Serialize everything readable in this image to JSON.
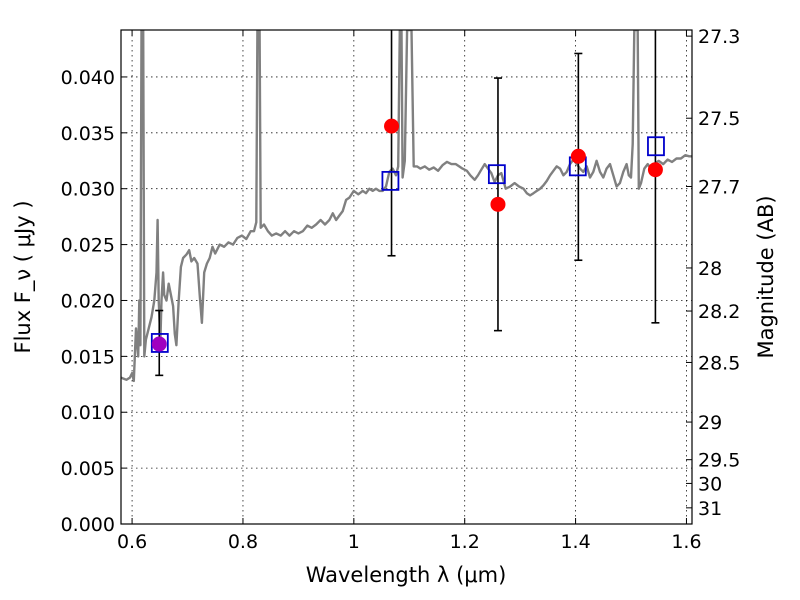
{
  "chart_data": {
    "type": "scatter",
    "xlabel": "Wavelength  λ (μm)",
    "ylabel": "Flux  F_ν  ( μJy )",
    "y2label": "Magnitude (AB)",
    "xlim": [
      0.58,
      1.61
    ],
    "ylim": [
      0.0,
      0.0442
    ],
    "grid": true,
    "x_ticks": [
      {
        "value": 0.6,
        "label": "0.6"
      },
      {
        "value": 0.8,
        "label": "0.8"
      },
      {
        "value": 1.0,
        "label": "1"
      },
      {
        "value": 1.2,
        "label": "1.2"
      },
      {
        "value": 1.4,
        "label": "1.4"
      },
      {
        "value": 1.6,
        "label": "1.6"
      }
    ],
    "y_ticks": [
      {
        "value": 0.0,
        "label": "0.000"
      },
      {
        "value": 0.005,
        "label": "0.005"
      },
      {
        "value": 0.01,
        "label": "0.010"
      },
      {
        "value": 0.015,
        "label": "0.015"
      },
      {
        "value": 0.02,
        "label": "0.020"
      },
      {
        "value": 0.025,
        "label": "0.025"
      },
      {
        "value": 0.03,
        "label": "0.030"
      },
      {
        "value": 0.035,
        "label": "0.035"
      },
      {
        "value": 0.04,
        "label": "0.040"
      }
    ],
    "y2_ticks": [
      {
        "mag": 27.3,
        "label": "27.3"
      },
      {
        "mag": 27.5,
        "label": "27.5"
      },
      {
        "mag": 27.7,
        "label": "27.7"
      },
      {
        "mag": 28.0,
        "label": "28"
      },
      {
        "mag": 28.2,
        "label": "28.2"
      },
      {
        "mag": 28.5,
        "label": "28.5"
      },
      {
        "mag": 29.0,
        "label": "29"
      },
      {
        "mag": 29.5,
        "label": "29.5"
      },
      {
        "mag": 30.0,
        "label": "30"
      },
      {
        "mag": 31.0,
        "label": "31"
      }
    ],
    "series": [
      {
        "type": "line",
        "color": "#808080",
        "points": [
          [
            0.58,
            0.0131
          ],
          [
            0.585,
            0.013
          ],
          [
            0.59,
            0.0129
          ],
          [
            0.596,
            0.0131
          ],
          [
            0.6,
            0.0135
          ],
          [
            0.603,
            0.0128
          ],
          [
            0.607,
            0.0175
          ],
          [
            0.611,
            0.015
          ],
          [
            0.613,
            0.02
          ],
          [
            0.615,
            0.016
          ],
          [
            0.617,
            0.0442
          ],
          [
            0.62,
            0.0442
          ],
          [
            0.622,
            0.015
          ],
          [
            0.625,
            0.0165
          ],
          [
            0.63,
            0.0175
          ],
          [
            0.635,
            0.0185
          ],
          [
            0.64,
            0.02
          ],
          [
            0.644,
            0.0225
          ],
          [
            0.646,
            0.0272
          ],
          [
            0.648,
            0.02
          ],
          [
            0.651,
            0.0165
          ],
          [
            0.653,
            0.02
          ],
          [
            0.656,
            0.0225
          ],
          [
            0.658,
            0.0205
          ],
          [
            0.662,
            0.02
          ],
          [
            0.666,
            0.0215
          ],
          [
            0.67,
            0.0205
          ],
          [
            0.674,
            0.0195
          ],
          [
            0.677,
            0.017
          ],
          [
            0.68,
            0.016
          ],
          [
            0.684,
            0.02
          ],
          [
            0.688,
            0.023
          ],
          [
            0.692,
            0.0238
          ],
          [
            0.698,
            0.0241
          ],
          [
            0.703,
            0.0245
          ],
          [
            0.707,
            0.0235
          ],
          [
            0.712,
            0.0238
          ],
          [
            0.718,
            0.0233
          ],
          [
            0.722,
            0.0205
          ],
          [
            0.726,
            0.018
          ],
          [
            0.73,
            0.0225
          ],
          [
            0.735,
            0.0233
          ],
          [
            0.74,
            0.0238
          ],
          [
            0.745,
            0.0248
          ],
          [
            0.75,
            0.0242
          ],
          [
            0.758,
            0.025
          ],
          [
            0.766,
            0.0248
          ],
          [
            0.774,
            0.0252
          ],
          [
            0.782,
            0.025
          ],
          [
            0.79,
            0.0256
          ],
          [
            0.798,
            0.0258
          ],
          [
            0.806,
            0.0255
          ],
          [
            0.814,
            0.0262
          ],
          [
            0.82,
            0.0262
          ],
          [
            0.824,
            0.027
          ],
          [
            0.826,
            0.0442
          ],
          [
            0.83,
            0.0442
          ],
          [
            0.832,
            0.0265
          ],
          [
            0.838,
            0.0268
          ],
          [
            0.845,
            0.0262
          ],
          [
            0.852,
            0.0258
          ],
          [
            0.86,
            0.026
          ],
          [
            0.868,
            0.0258
          ],
          [
            0.876,
            0.0262
          ],
          [
            0.884,
            0.0258
          ],
          [
            0.892,
            0.0262
          ],
          [
            0.9,
            0.026
          ],
          [
            0.908,
            0.0262
          ],
          [
            0.916,
            0.0267
          ],
          [
            0.924,
            0.0265
          ],
          [
            0.932,
            0.0268
          ],
          [
            0.94,
            0.0272
          ],
          [
            0.948,
            0.0268
          ],
          [
            0.956,
            0.0272
          ],
          [
            0.962,
            0.0278
          ],
          [
            0.968,
            0.0272
          ],
          [
            0.974,
            0.0276
          ],
          [
            0.98,
            0.028
          ],
          [
            0.986,
            0.029
          ],
          [
            0.992,
            0.0292
          ],
          [
            1.0,
            0.0298
          ],
          [
            1.008,
            0.0295
          ],
          [
            1.016,
            0.0298
          ],
          [
            1.022,
            0.0296
          ],
          [
            1.028,
            0.03
          ],
          [
            1.034,
            0.0298
          ],
          [
            1.04,
            0.03
          ],
          [
            1.046,
            0.0298
          ],
          [
            1.052,
            0.0298
          ],
          [
            1.058,
            0.0302
          ],
          [
            1.064,
            0.0315
          ],
          [
            1.07,
            0.0318
          ],
          [
            1.076,
            0.0312
          ],
          [
            1.08,
            0.032
          ],
          [
            1.083,
            0.0442
          ],
          [
            1.086,
            0.0442
          ],
          [
            1.088,
            0.031
          ],
          [
            1.092,
            0.0325
          ],
          [
            1.096,
            0.0442
          ],
          [
            1.104,
            0.0442
          ],
          [
            1.108,
            0.032
          ],
          [
            1.114,
            0.032
          ],
          [
            1.12,
            0.0318
          ],
          [
            1.128,
            0.032
          ],
          [
            1.136,
            0.0317
          ],
          [
            1.144,
            0.0319
          ],
          [
            1.152,
            0.0316
          ],
          [
            1.16,
            0.0321
          ],
          [
            1.168,
            0.0324
          ],
          [
            1.176,
            0.0322
          ],
          [
            1.184,
            0.0322
          ],
          [
            1.19,
            0.032
          ],
          [
            1.196,
            0.0318
          ],
          [
            1.204,
            0.0316
          ],
          [
            1.21,
            0.0312
          ],
          [
            1.218,
            0.0308
          ],
          [
            1.224,
            0.0312
          ],
          [
            1.23,
            0.0317
          ],
          [
            1.236,
            0.0322
          ],
          [
            1.242,
            0.0318
          ],
          [
            1.248,
            0.0314
          ],
          [
            1.254,
            0.0306
          ],
          [
            1.26,
            0.0312
          ],
          [
            1.266,
            0.0314
          ],
          [
            1.274,
            0.03
          ],
          [
            1.282,
            0.0302
          ],
          [
            1.29,
            0.0305
          ],
          [
            1.298,
            0.0302
          ],
          [
            1.306,
            0.03
          ],
          [
            1.312,
            0.0296
          ],
          [
            1.318,
            0.0294
          ],
          [
            1.324,
            0.0296
          ],
          [
            1.33,
            0.0298
          ],
          [
            1.336,
            0.03
          ],
          [
            1.342,
            0.0303
          ],
          [
            1.348,
            0.0307
          ],
          [
            1.354,
            0.0312
          ],
          [
            1.36,
            0.0316
          ],
          [
            1.366,
            0.032
          ],
          [
            1.372,
            0.0318
          ],
          [
            1.378,
            0.0312
          ],
          [
            1.384,
            0.0315
          ],
          [
            1.39,
            0.0322
          ],
          [
            1.396,
            0.0326
          ],
          [
            1.402,
            0.0322
          ],
          [
            1.408,
            0.0318
          ],
          [
            1.414,
            0.0315
          ],
          [
            1.42,
            0.032
          ],
          [
            1.426,
            0.031
          ],
          [
            1.432,
            0.0315
          ],
          [
            1.438,
            0.0325
          ],
          [
            1.444,
            0.0315
          ],
          [
            1.45,
            0.031
          ],
          [
            1.456,
            0.0318
          ],
          [
            1.462,
            0.0322
          ],
          [
            1.468,
            0.0312
          ],
          [
            1.474,
            0.0302
          ],
          [
            1.48,
            0.0305
          ],
          [
            1.486,
            0.0315
          ],
          [
            1.492,
            0.0322
          ],
          [
            1.496,
            0.0312
          ],
          [
            1.5,
            0.031
          ],
          [
            1.503,
            0.034
          ],
          [
            1.506,
            0.0442
          ],
          [
            1.512,
            0.0442
          ],
          [
            1.514,
            0.03
          ],
          [
            1.518,
            0.0305
          ],
          [
            1.524,
            0.0318
          ],
          [
            1.53,
            0.0322
          ],
          [
            1.536,
            0.0318
          ],
          [
            1.542,
            0.0322
          ],
          [
            1.55,
            0.0325
          ],
          [
            1.558,
            0.0322
          ],
          [
            1.566,
            0.0326
          ],
          [
            1.574,
            0.0324
          ],
          [
            1.582,
            0.0327
          ],
          [
            1.59,
            0.0327
          ],
          [
            1.598,
            0.033
          ],
          [
            1.605,
            0.0329
          ],
          [
            1.61,
            0.0329
          ]
        ]
      },
      {
        "type": "errorbar",
        "marker": "circle",
        "color": "#ff0000",
        "points": [
          {
            "x": 0.649,
            "y": 0.0161,
            "lo": 0.0133,
            "hi": 0.0191,
            "color": "#a000c0"
          },
          {
            "x": 1.068,
            "y": 0.0356,
            "lo": 0.024,
            "hi": 0.0442
          },
          {
            "x": 1.26,
            "y": 0.0286,
            "lo": 0.0173,
            "hi": 0.0399
          },
          {
            "x": 1.405,
            "y": 0.0329,
            "lo": 0.0236,
            "hi": 0.0421
          },
          {
            "x": 1.544,
            "y": 0.0317,
            "lo": 0.018,
            "hi": 0.0442
          }
        ]
      },
      {
        "type": "scatter",
        "marker": "square-open",
        "color": "#0000cc",
        "points": [
          {
            "x": 0.65,
            "y": 0.0162
          },
          {
            "x": 1.066,
            "y": 0.0307
          },
          {
            "x": 1.258,
            "y": 0.0313
          },
          {
            "x": 1.404,
            "y": 0.032
          },
          {
            "x": 1.545,
            "y": 0.0338
          }
        ]
      }
    ]
  }
}
